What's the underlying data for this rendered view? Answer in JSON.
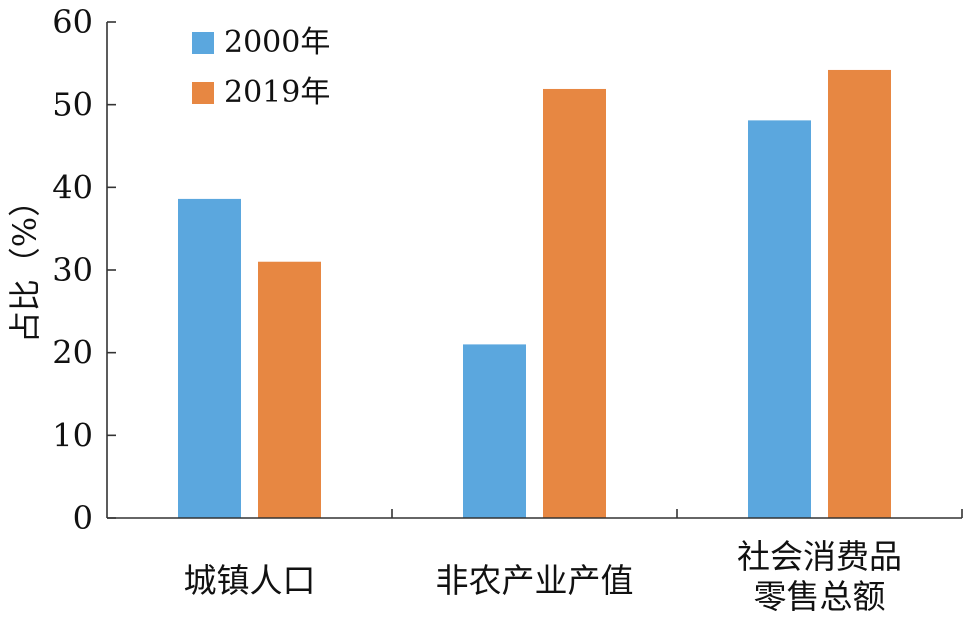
{
  "chart_data": {
    "type": "bar",
    "title": "",
    "xlabel": "",
    "ylabel": "占比（%）",
    "ylim": [
      0,
      60
    ],
    "yticks": [
      0,
      10,
      20,
      30,
      40,
      50,
      60
    ],
    "grid": false,
    "legend": "top-left",
    "categories": [
      [
        "城镇人口"
      ],
      [
        "非农产业产值"
      ],
      [
        "社会消费品",
        "零售总额"
      ]
    ],
    "series": [
      {
        "name": "2000年",
        "color": "#5BA7DE",
        "values": [
          38.6,
          21.0,
          48.1
        ]
      },
      {
        "name": "2019年",
        "color": "#E78742",
        "values": [
          31.0,
          51.9,
          54.2
        ]
      }
    ]
  }
}
